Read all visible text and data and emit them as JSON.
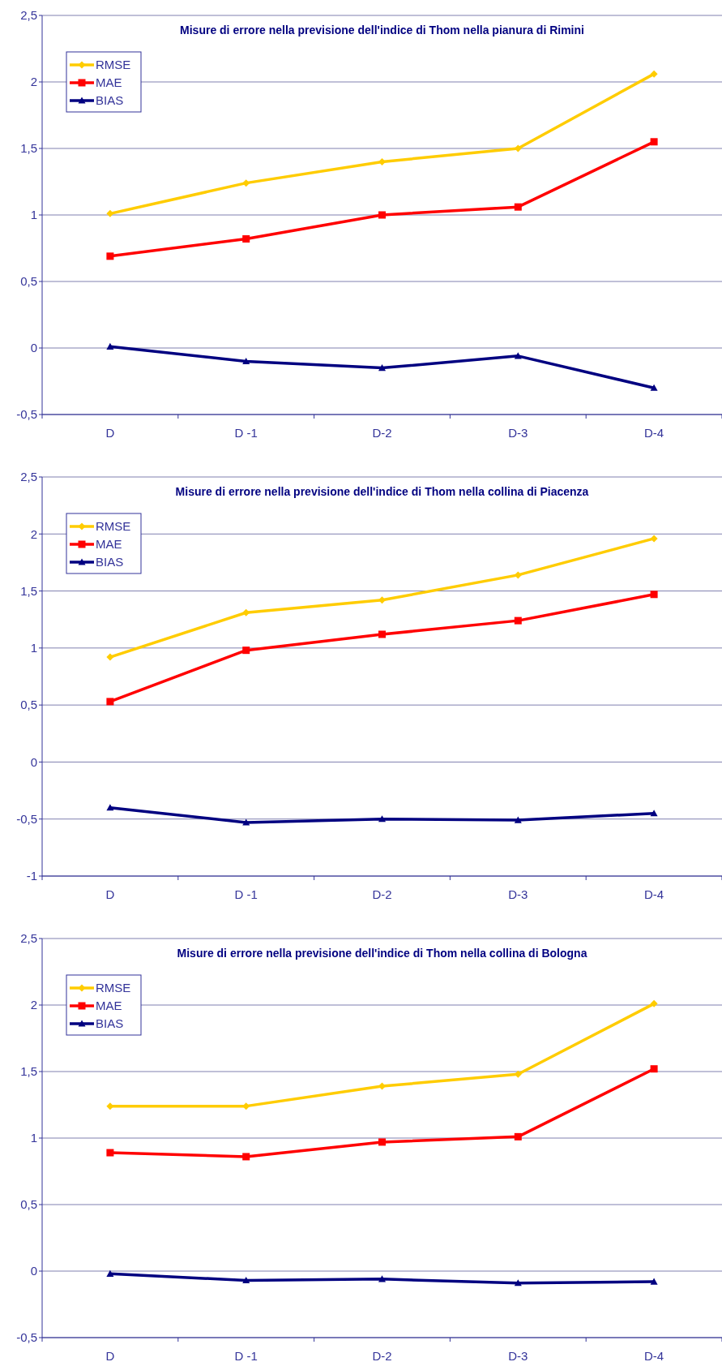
{
  "chart_data": [
    {
      "type": "line",
      "title": "Misure di errore nella previsione dell'indice di Thom nella pianura di Rimini",
      "categories": [
        "D",
        "D -1",
        "D-2",
        "D-3",
        "D-4"
      ],
      "series": [
        {
          "name": "RMSE",
          "color": "#ffcc00",
          "marker": "diamond",
          "values": [
            1.01,
            1.24,
            1.4,
            1.5,
            2.06
          ]
        },
        {
          "name": "MAE",
          "color": "#ff0000",
          "marker": "square",
          "values": [
            0.69,
            0.82,
            1.0,
            1.06,
            1.55
          ]
        },
        {
          "name": "BIAS",
          "color": "#000080",
          "marker": "triangle",
          "values": [
            0.01,
            -0.1,
            -0.15,
            -0.06,
            -0.3
          ]
        }
      ],
      "ylim": [
        -0.5,
        2.5
      ],
      "yticks": [
        {
          "value": -0.5,
          "label": "-0,5"
        },
        0,
        {
          "value": 0.5,
          "label": "0,5"
        },
        1,
        {
          "value": 1.5,
          "label": "1,5"
        },
        2,
        {
          "value": 2.5,
          "label": "2,5"
        }
      ],
      "grid": "y",
      "legend": "top left"
    },
    {
      "type": "line",
      "title": "Misure di errore nella previsione dell'indice di Thom nella collina di Piacenza",
      "categories": [
        "D",
        "D -1",
        "D-2",
        "D-3",
        "D-4"
      ],
      "series": [
        {
          "name": "RMSE",
          "color": "#ffcc00",
          "marker": "diamond",
          "values": [
            0.92,
            1.31,
            1.42,
            1.64,
            1.96
          ]
        },
        {
          "name": "MAE",
          "color": "#ff0000",
          "marker": "square",
          "values": [
            0.53,
            0.98,
            1.12,
            1.24,
            1.47
          ]
        },
        {
          "name": "BIAS",
          "color": "#000080",
          "marker": "triangle",
          "values": [
            -0.4,
            -0.53,
            -0.5,
            -0.51,
            -0.45
          ]
        }
      ],
      "ylim": [
        -1,
        2.5
      ],
      "yticks": [
        -1,
        {
          "value": -0.5,
          "label": "-0,5"
        },
        0,
        {
          "value": 0.5,
          "label": "0,5"
        },
        1,
        {
          "value": 1.5,
          "label": "1,5"
        },
        2,
        {
          "value": 2.5,
          "label": "2,5"
        }
      ],
      "grid": "y",
      "legend": "top left"
    },
    {
      "type": "line",
      "title": "Misure di errore nella previsione dell'indice di Thom nella collina di Bologna",
      "categories": [
        "D",
        "D -1",
        "D-2",
        "D-3",
        "D-4"
      ],
      "series": [
        {
          "name": "RMSE",
          "color": "#ffcc00",
          "marker": "diamond",
          "values": [
            1.24,
            1.24,
            1.39,
            1.48,
            2.01
          ]
        },
        {
          "name": "MAE",
          "color": "#ff0000",
          "marker": "square",
          "values": [
            0.89,
            0.86,
            0.97,
            1.01,
            1.52
          ]
        },
        {
          "name": "BIAS",
          "color": "#000080",
          "marker": "triangle",
          "values": [
            -0.02,
            -0.07,
            -0.06,
            -0.09,
            -0.08
          ]
        }
      ],
      "ylim": [
        -0.5,
        2.5
      ],
      "yticks": [
        {
          "value": -0.5,
          "label": "-0,5"
        },
        0,
        {
          "value": 0.5,
          "label": "0,5"
        },
        1,
        {
          "value": 1.5,
          "label": "1,5"
        },
        2,
        {
          "value": 2.5,
          "label": "2,5"
        }
      ],
      "grid": "y",
      "legend": "top left"
    }
  ]
}
